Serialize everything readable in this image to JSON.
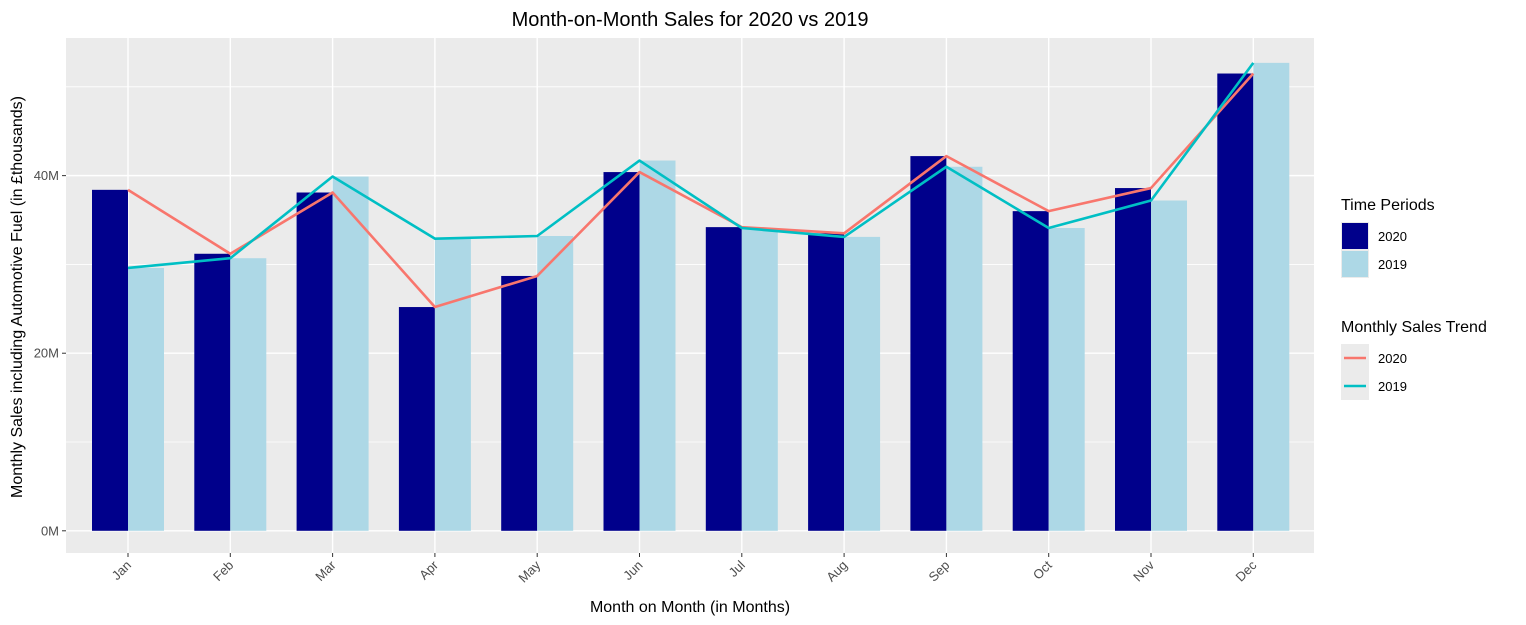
{
  "chart_data": {
    "type": "bar",
    "title": "Month-on-Month Sales for 2020 vs 2019",
    "xlabel": "Month on Month (in Months)",
    "ylabel": "Monthly Sales including Automotive Fuel (in £thousands)",
    "categories": [
      "Jan",
      "Feb",
      "Mar",
      "Apr",
      "May",
      "Jun",
      "Jul",
      "Aug",
      "Sep",
      "Oct",
      "Nov",
      "Dec"
    ],
    "y_ticks": [
      {
        "value": 0,
        "label": "0M"
      },
      {
        "value": 20,
        "label": "20M"
      },
      {
        "value": 40,
        "label": "40M"
      }
    ],
    "ylim": [
      -2.5,
      55.5
    ],
    "y_unit_note": "values in millions",
    "bar_series": [
      {
        "name": "2020",
        "color": "#00008B",
        "values": [
          38.4,
          31.2,
          38.1,
          25.2,
          28.7,
          40.4,
          34.2,
          33.5,
          42.2,
          36.0,
          38.6,
          51.5
        ]
      },
      {
        "name": "2019",
        "color": "#ADD8E6",
        "values": [
          29.6,
          30.7,
          39.9,
          32.9,
          33.2,
          41.7,
          34.1,
          33.1,
          41.0,
          34.1,
          37.2,
          52.7
        ]
      }
    ],
    "line_series": [
      {
        "name": "2020",
        "color": "#F8766D",
        "values": [
          38.4,
          31.2,
          38.1,
          25.2,
          28.7,
          40.4,
          34.2,
          33.5,
          42.2,
          36.0,
          38.6,
          51.5
        ]
      },
      {
        "name": "2019",
        "color": "#00BFC4",
        "values": [
          29.6,
          30.7,
          39.9,
          32.9,
          33.2,
          41.7,
          34.1,
          33.1,
          41.0,
          34.1,
          37.2,
          52.7
        ]
      }
    ],
    "grid": true,
    "panel_color": "#EBEBEB",
    "legends": [
      {
        "title": "Time Periods",
        "kind": "fill",
        "entries": [
          {
            "label": "2020",
            "color": "#00008B"
          },
          {
            "label": "2019",
            "color": "#ADD8E6"
          }
        ]
      },
      {
        "title": "Monthly Sales Trend",
        "kind": "line",
        "entries": [
          {
            "label": "2020",
            "color": "#F8766D"
          },
          {
            "label": "2019",
            "color": "#00BFC4"
          }
        ]
      }
    ],
    "legend_position": "right"
  }
}
